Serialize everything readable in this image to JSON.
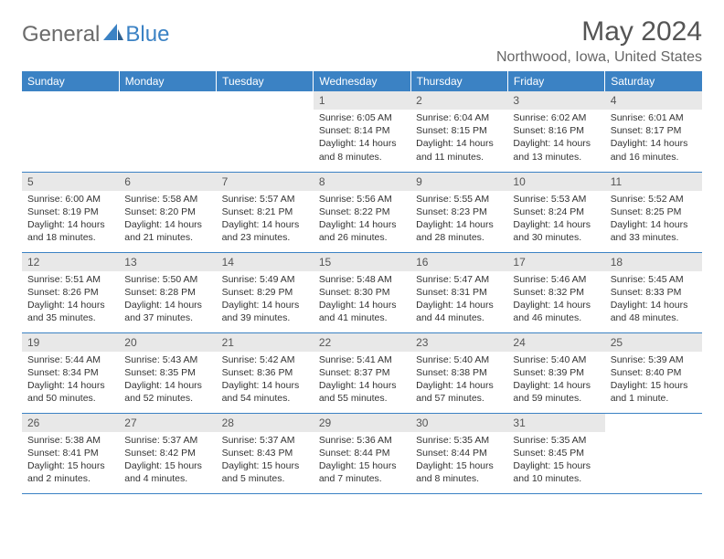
{
  "logo": {
    "general": "General",
    "blue": "Blue"
  },
  "title": "May 2024",
  "location": "Northwood, Iowa, United States",
  "colors": {
    "header_bg": "#3b82c4",
    "header_fg": "#ffffff",
    "daynum_bg": "#e8e8e8",
    "text": "#333333",
    "border": "#3b82c4"
  },
  "day_headers": [
    "Sunday",
    "Monday",
    "Tuesday",
    "Wednesday",
    "Thursday",
    "Friday",
    "Saturday"
  ],
  "weeks": [
    [
      null,
      null,
      null,
      {
        "n": "1",
        "sr": "6:05 AM",
        "ss": "8:14 PM",
        "dl": "14 hours and 8 minutes."
      },
      {
        "n": "2",
        "sr": "6:04 AM",
        "ss": "8:15 PM",
        "dl": "14 hours and 11 minutes."
      },
      {
        "n": "3",
        "sr": "6:02 AM",
        "ss": "8:16 PM",
        "dl": "14 hours and 13 minutes."
      },
      {
        "n": "4",
        "sr": "6:01 AM",
        "ss": "8:17 PM",
        "dl": "14 hours and 16 minutes."
      }
    ],
    [
      {
        "n": "5",
        "sr": "6:00 AM",
        "ss": "8:19 PM",
        "dl": "14 hours and 18 minutes."
      },
      {
        "n": "6",
        "sr": "5:58 AM",
        "ss": "8:20 PM",
        "dl": "14 hours and 21 minutes."
      },
      {
        "n": "7",
        "sr": "5:57 AM",
        "ss": "8:21 PM",
        "dl": "14 hours and 23 minutes."
      },
      {
        "n": "8",
        "sr": "5:56 AM",
        "ss": "8:22 PM",
        "dl": "14 hours and 26 minutes."
      },
      {
        "n": "9",
        "sr": "5:55 AM",
        "ss": "8:23 PM",
        "dl": "14 hours and 28 minutes."
      },
      {
        "n": "10",
        "sr": "5:53 AM",
        "ss": "8:24 PM",
        "dl": "14 hours and 30 minutes."
      },
      {
        "n": "11",
        "sr": "5:52 AM",
        "ss": "8:25 PM",
        "dl": "14 hours and 33 minutes."
      }
    ],
    [
      {
        "n": "12",
        "sr": "5:51 AM",
        "ss": "8:26 PM",
        "dl": "14 hours and 35 minutes."
      },
      {
        "n": "13",
        "sr": "5:50 AM",
        "ss": "8:28 PM",
        "dl": "14 hours and 37 minutes."
      },
      {
        "n": "14",
        "sr": "5:49 AM",
        "ss": "8:29 PM",
        "dl": "14 hours and 39 minutes."
      },
      {
        "n": "15",
        "sr": "5:48 AM",
        "ss": "8:30 PM",
        "dl": "14 hours and 41 minutes."
      },
      {
        "n": "16",
        "sr": "5:47 AM",
        "ss": "8:31 PM",
        "dl": "14 hours and 44 minutes."
      },
      {
        "n": "17",
        "sr": "5:46 AM",
        "ss": "8:32 PM",
        "dl": "14 hours and 46 minutes."
      },
      {
        "n": "18",
        "sr": "5:45 AM",
        "ss": "8:33 PM",
        "dl": "14 hours and 48 minutes."
      }
    ],
    [
      {
        "n": "19",
        "sr": "5:44 AM",
        "ss": "8:34 PM",
        "dl": "14 hours and 50 minutes."
      },
      {
        "n": "20",
        "sr": "5:43 AM",
        "ss": "8:35 PM",
        "dl": "14 hours and 52 minutes."
      },
      {
        "n": "21",
        "sr": "5:42 AM",
        "ss": "8:36 PM",
        "dl": "14 hours and 54 minutes."
      },
      {
        "n": "22",
        "sr": "5:41 AM",
        "ss": "8:37 PM",
        "dl": "14 hours and 55 minutes."
      },
      {
        "n": "23",
        "sr": "5:40 AM",
        "ss": "8:38 PM",
        "dl": "14 hours and 57 minutes."
      },
      {
        "n": "24",
        "sr": "5:40 AM",
        "ss": "8:39 PM",
        "dl": "14 hours and 59 minutes."
      },
      {
        "n": "25",
        "sr": "5:39 AM",
        "ss": "8:40 PM",
        "dl": "15 hours and 1 minute."
      }
    ],
    [
      {
        "n": "26",
        "sr": "5:38 AM",
        "ss": "8:41 PM",
        "dl": "15 hours and 2 minutes."
      },
      {
        "n": "27",
        "sr": "5:37 AM",
        "ss": "8:42 PM",
        "dl": "15 hours and 4 minutes."
      },
      {
        "n": "28",
        "sr": "5:37 AM",
        "ss": "8:43 PM",
        "dl": "15 hours and 5 minutes."
      },
      {
        "n": "29",
        "sr": "5:36 AM",
        "ss": "8:44 PM",
        "dl": "15 hours and 7 minutes."
      },
      {
        "n": "30",
        "sr": "5:35 AM",
        "ss": "8:44 PM",
        "dl": "15 hours and 8 minutes."
      },
      {
        "n": "31",
        "sr": "5:35 AM",
        "ss": "8:45 PM",
        "dl": "15 hours and 10 minutes."
      },
      null
    ]
  ],
  "labels": {
    "sunrise": "Sunrise:",
    "sunset": "Sunset:",
    "daylight": "Daylight:"
  }
}
